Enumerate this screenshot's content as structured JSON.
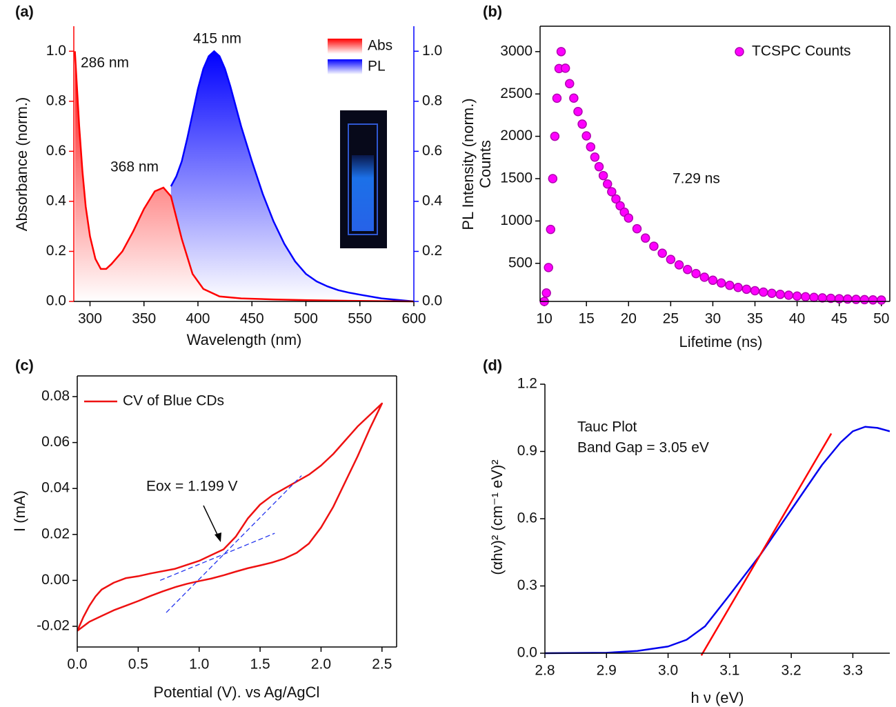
{
  "chart_data": [
    {
      "type": "area",
      "label": "(a)",
      "x_label": "Wavelength (nm)",
      "y_label": "Absorbance (norm.)",
      "y2_label": "PL Intensity (norm.)",
      "axis_color": "#ff0000",
      "y2_axis_color": "#0000ff",
      "legend": "upper right",
      "series": [
        {
          "name": "Abs",
          "color": "#ff0000",
          "x": [
            286,
            288,
            290,
            293,
            296,
            300,
            305,
            310,
            315,
            320,
            330,
            340,
            350,
            360,
            368,
            375,
            385,
            395,
            405,
            420,
            440,
            470,
            500,
            550,
            600
          ],
          "values": [
            1.0,
            0.85,
            0.7,
            0.52,
            0.38,
            0.26,
            0.17,
            0.13,
            0.13,
            0.15,
            0.2,
            0.28,
            0.37,
            0.44,
            0.455,
            0.42,
            0.25,
            0.11,
            0.05,
            0.02,
            0.012,
            0.008,
            0.005,
            0.002,
            0.0
          ]
        },
        {
          "name": "PL",
          "color": "#0000ff",
          "axis": "y2",
          "x": [
            375,
            380,
            385,
            390,
            395,
            400,
            405,
            410,
            415,
            420,
            425,
            430,
            435,
            440,
            445,
            450,
            460,
            470,
            480,
            490,
            500,
            510,
            520,
            530,
            540,
            550,
            570,
            600
          ],
          "values": [
            0.46,
            0.5,
            0.56,
            0.65,
            0.75,
            0.85,
            0.93,
            0.98,
            1.0,
            0.98,
            0.93,
            0.86,
            0.78,
            0.7,
            0.63,
            0.56,
            0.43,
            0.32,
            0.23,
            0.16,
            0.11,
            0.08,
            0.06,
            0.045,
            0.035,
            0.027,
            0.012,
            0.0
          ]
        }
      ],
      "xlim": [
        285,
        600
      ],
      "xticks": [
        300,
        350,
        400,
        450,
        500,
        550,
        600
      ],
      "ylim": [
        0,
        1.1
      ],
      "yticks": [
        {
          "value": 0,
          "label": "0.0"
        },
        0.2,
        0.4,
        0.6,
        0.8,
        {
          "value": 1,
          "label": "1.0"
        }
      ],
      "y2lim": [
        0,
        1.1
      ],
      "y2ticks": [
        {
          "value": 0,
          "label": "0.0"
        },
        0.2,
        0.4,
        0.6,
        0.8,
        {
          "value": 1,
          "label": "1.0"
        }
      ],
      "annotations": [
        "286 nm",
        "368 nm",
        "415 nm"
      ]
    },
    {
      "type": "scatter",
      "label": "(b)",
      "x_label": "Lifetime (ns)",
      "y_label": "Counts",
      "legend": "upper right",
      "x": [
        10,
        10.25,
        10.5,
        10.75,
        11,
        11.25,
        11.5,
        11.75,
        12,
        12.5,
        13,
        13.5,
        14,
        14.5,
        15,
        15.5,
        16,
        16.5,
        17,
        17.5,
        18,
        18.5,
        19,
        19.5,
        20,
        21,
        22,
        23,
        24,
        25,
        26,
        27,
        28,
        29,
        30,
        31,
        32,
        33,
        34,
        35,
        36,
        37,
        38,
        39,
        40,
        41,
        42,
        43,
        44,
        45,
        46,
        47,
        48,
        49,
        50
      ],
      "series": [
        {
          "name": "TCSPC Counts",
          "color": "#ff00ff",
          "values": [
            50,
            150,
            450,
            900,
            1500,
            2000,
            2450,
            2800,
            3000,
            2804,
            2622,
            2451,
            2292,
            2144,
            2005,
            1875,
            1754,
            1641,
            1536,
            1437,
            1345,
            1260,
            1179,
            1104,
            1035,
            908,
            798,
            702,
            619,
            546,
            482,
            427,
            379,
            336,
            300,
            268,
            240,
            215,
            194,
            176,
            160,
            146,
            133,
            123,
            113,
            105,
            98,
            92,
            87,
            82,
            78,
            74,
            71,
            68,
            66
          ]
        }
      ],
      "xlim": [
        9.5,
        51
      ],
      "xticks": [
        10,
        15,
        20,
        25,
        30,
        35,
        40,
        45,
        50
      ],
      "ylim": [
        50,
        3300
      ],
      "yticks": [
        500,
        1000,
        1500,
        2000,
        2500,
        3000
      ],
      "annotations": [
        "7.29 ns"
      ]
    },
    {
      "type": "line",
      "label": "(c)",
      "x_label": "Potential (V). vs Ag/AgCl",
      "y_label": "I (mA)",
      "legend": "upper left",
      "series": [
        {
          "name": "CV of Blue CDs",
          "color": "#ee1111",
          "x": [
            0,
            0.05,
            0.1,
            0.15,
            0.2,
            0.3,
            0.4,
            0.5,
            0.6,
            0.8,
            1.0,
            1.1,
            1.2,
            1.3,
            1.4,
            1.5,
            1.6,
            1.7,
            1.8,
            1.9,
            2.0,
            2.1,
            2.2,
            2.3,
            2.4,
            2.5,
            2.4,
            2.3,
            2.2,
            2.1,
            2.0,
            1.9,
            1.8,
            1.7,
            1.6,
            1.5,
            1.4,
            1.3,
            1.2,
            1.1,
            1.0,
            0.9,
            0.8,
            0.7,
            0.6,
            0.5,
            0.4,
            0.3,
            0.2,
            0.1,
            0
          ],
          "values": [
            -0.022,
            -0.016,
            -0.011,
            -0.007,
            -0.004,
            -0.001,
            0.001,
            0.0018,
            0.003,
            0.005,
            0.0085,
            0.011,
            0.0135,
            0.019,
            0.027,
            0.033,
            0.037,
            0.04,
            0.043,
            0.046,
            0.05,
            0.055,
            0.061,
            0.067,
            0.072,
            0.077,
            0.066,
            0.054,
            0.043,
            0.032,
            0.023,
            0.016,
            0.012,
            0.0095,
            0.0078,
            0.0065,
            0.0053,
            0.0038,
            0.0022,
            0.0008,
            -0.0003,
            -0.0015,
            -0.003,
            -0.0048,
            -0.0068,
            -0.009,
            -0.011,
            -0.013,
            -0.0155,
            -0.018,
            -0.022
          ]
        }
      ],
      "fit_lines": [
        {
          "x": [
            0.73,
            1.84
          ],
          "values": [
            -0.014,
            0.0456
          ]
        },
        {
          "x": [
            0.68,
            1.62
          ],
          "values": [
            0.0,
            0.0205
          ]
        }
      ],
      "fit_color": "#2233ee",
      "fit_dashed": true,
      "xlim": [
        0,
        2.62
      ],
      "xticks": [
        {
          "value": 0,
          "label": "0.0"
        },
        0.5,
        {
          "value": 1,
          "label": "1.0"
        },
        1.5,
        {
          "value": 2,
          "label": "2.0"
        },
        2.5
      ],
      "ylim": [
        -0.029,
        0.089
      ],
      "yticks": [
        -0.02,
        {
          "value": 0,
          "label": "0.00"
        },
        0.02,
        0.04,
        0.06,
        0.08
      ],
      "annotations": [
        "Eox = 1.199 V"
      ]
    },
    {
      "type": "line",
      "label": "(d)",
      "x_label": "h ν (eV)",
      "y_label": "(αhν)² (cm⁻¹ eV)²",
      "series": [
        {
          "color": "#0000ee",
          "x": [
            2.8,
            2.9,
            2.95,
            3.0,
            3.03,
            3.06,
            3.1,
            3.15,
            3.2,
            3.25,
            3.28,
            3.3,
            3.32,
            3.34,
            3.36
          ],
          "values": [
            0,
            0.002,
            0.01,
            0.03,
            0.06,
            0.12,
            0.26,
            0.44,
            0.64,
            0.84,
            0.94,
            0.99,
            1.01,
            1.005,
            0.99
          ]
        }
      ],
      "fit_lines": [
        {
          "x": [
            3.054,
            3.265
          ],
          "values": [
            -0.01,
            0.98
          ]
        }
      ],
      "fit_color": "#ff0000",
      "fit_dashed": false,
      "xlim": [
        2.8,
        3.36
      ],
      "xticks": [
        2.8,
        2.9,
        {
          "value": 3,
          "label": "3.0"
        },
        3.1,
        3.2,
        3.3
      ],
      "ylim": [
        0,
        1.2
      ],
      "yticks": [
        {
          "value": 0,
          "label": "0.0"
        },
        0.3,
        0.6,
        0.9,
        1.2
      ],
      "annotations": [
        "Tauc Plot",
        "Band Gap = 3.05 eV"
      ]
    }
  ]
}
